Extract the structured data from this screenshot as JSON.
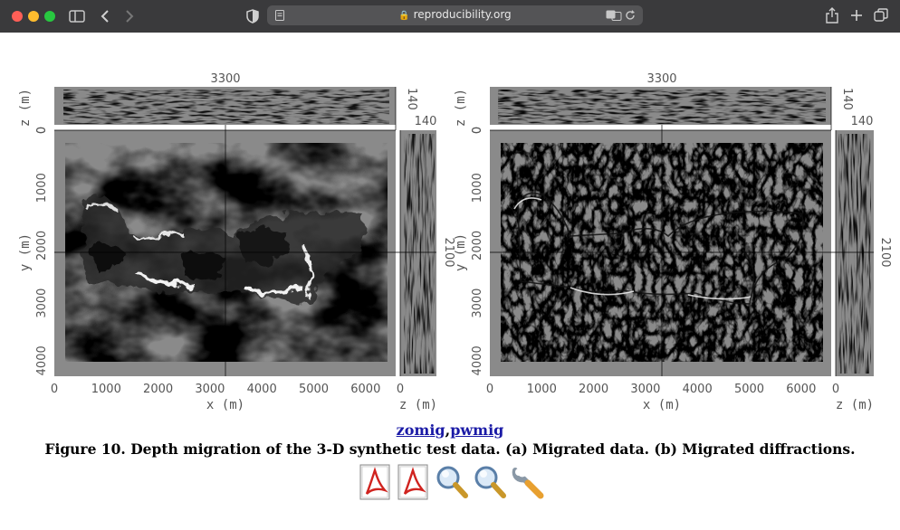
{
  "browser": {
    "url": "reproducibility.org",
    "colors": {
      "close": "#ff5f57",
      "minimize": "#febc2e",
      "zoom": "#28c840"
    },
    "icons": [
      "sidebar-icon",
      "back-icon",
      "forward-icon",
      "shield-icon",
      "reader-icon",
      "lock-icon",
      "translate-icon",
      "reload-icon",
      "share-icon",
      "new-tab-icon",
      "tabs-icon"
    ]
  },
  "figure": {
    "panels": [
      {
        "id": "a",
        "top_tick": "3300",
        "right_top_tick": "140",
        "right_side_tick": "140",
        "z_axis_label": "z (m)",
        "z_axis_tick": "0",
        "y_axis_label": "y (m)",
        "y_ticks": [
          "0",
          "1000",
          "2000",
          "3000",
          "4000"
        ],
        "x_ticks": [
          "0",
          "1000",
          "2000",
          "3000",
          "4000",
          "5000",
          "6000"
        ],
        "x_axis_label": "x (m)",
        "side_x_tick": "0",
        "side_axis_label": "z (m)",
        "side_tick": "2100"
      },
      {
        "id": "b",
        "top_tick": "3300",
        "right_top_tick": "140",
        "right_side_tick": "140",
        "z_axis_label": "z (m)",
        "z_axis_tick": "0",
        "y_axis_label": "y (m)",
        "y_ticks": [
          "0",
          "1000",
          "2000",
          "3000",
          "4000"
        ],
        "x_ticks": [
          "0",
          "1000",
          "2000",
          "3000",
          "4000",
          "5000",
          "6000"
        ],
        "x_axis_label": "x (m)",
        "side_x_tick": "0",
        "side_axis_label": "z (m)",
        "side_tick": "2100"
      }
    ]
  },
  "links": {
    "first": "zomig",
    "separator": ",",
    "second": "pwmig"
  },
  "caption": "Figure 10. Depth migration of the 3-D synthetic test data. (a) Migrated data. (b) Migrated diffractions.",
  "toolbar_icons": [
    "pdf-icon",
    "pdf-icon",
    "magnifier-icon",
    "magnifier-icon",
    "wrench-icon"
  ]
}
